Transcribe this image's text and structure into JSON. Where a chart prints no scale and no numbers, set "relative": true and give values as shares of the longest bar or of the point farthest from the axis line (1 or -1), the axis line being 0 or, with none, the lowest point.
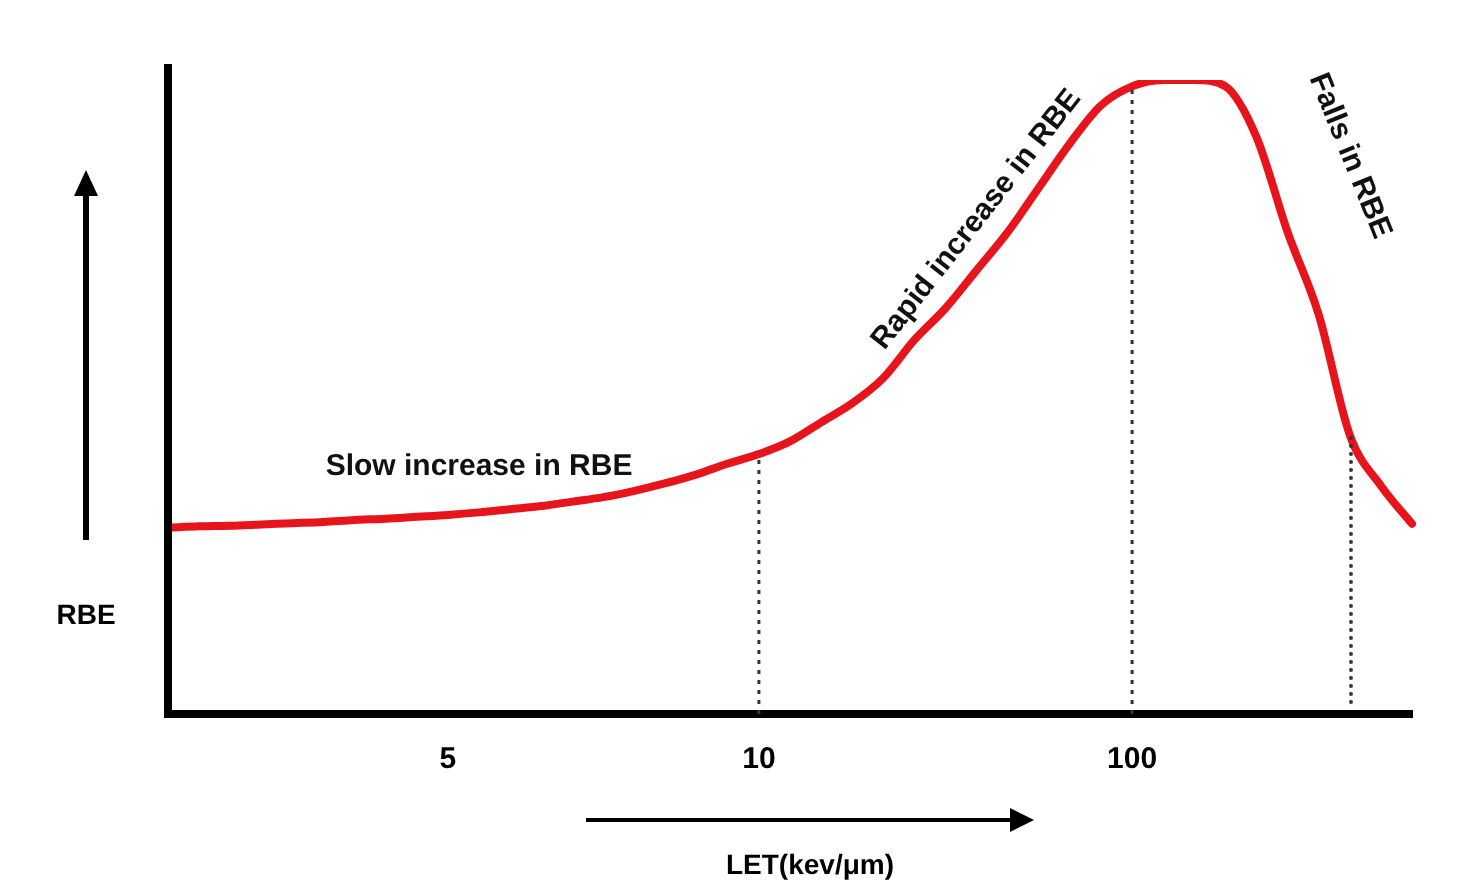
{
  "chart_data": {
    "type": "line",
    "relative": true,
    "ylabel": "RBE",
    "xlabel": "LET(kev/μm)",
    "categories": [
      null,
      null,
      null,
      null,
      null,
      null,
      null,
      null,
      null,
      "5",
      null,
      null,
      null,
      null,
      null,
      null,
      null,
      null,
      null,
      "10",
      null,
      null,
      null,
      null,
      null,
      null,
      null,
      null,
      null,
      null,
      null,
      "100",
      null,
      null,
      null,
      null,
      null,
      null,
      null,
      null,
      null
    ],
    "series": [
      {
        "color": "#e8141b",
        "values": [
          0.294,
          0.296,
          0.297,
          0.299,
          0.301,
          0.303,
          0.306,
          0.308,
          0.311,
          0.314,
          0.318,
          0.323,
          0.328,
          0.335,
          0.342,
          0.352,
          0.364,
          0.378,
          0.395,
          0.41,
          0.43,
          0.46,
          0.49,
          0.53,
          0.59,
          0.64,
          0.7,
          0.76,
          0.83,
          0.9,
          0.96,
          0.99,
          1,
          1,
          0.99,
          0.91,
          0.76,
          0.63,
          0.44,
          0.36,
          0.3
        ]
      }
    ],
    "ref_lines": [
      {
        "axis": "x",
        "value": "10",
        "line_style": "dotted",
        "color": "#333333"
      },
      {
        "axis": "x",
        "value": "100",
        "line_style": "dotted",
        "color": "#333333"
      }
    ],
    "annotations": [
      "Slow increase in RBE",
      "Rapid increase in RBE",
      "Falls in RBE"
    ],
    "grid": false,
    "legend": false,
    "marker": "none",
    "line_style": "solid",
    "tick_labels": "x"
  }
}
